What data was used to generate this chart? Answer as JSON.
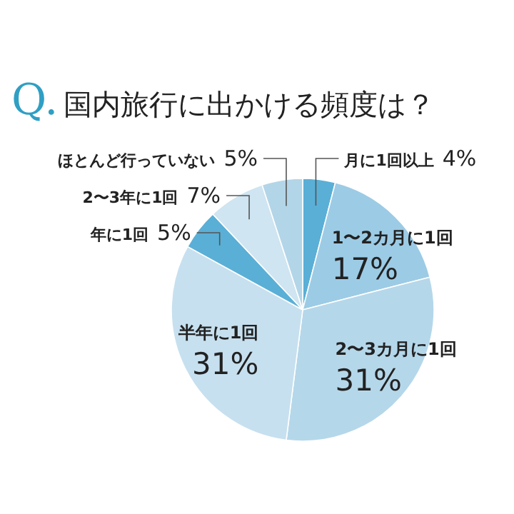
{
  "chart_data": {
    "type": "pie",
    "title": "Q.国内旅行に出かける頻度は？",
    "categories": [
      "月に1回以上",
      "1〜2カ月に1回",
      "2〜3カ月に1回",
      "半年に1回",
      "年に1回",
      "2〜3年に1回",
      "ほとんど行っていない"
    ],
    "values": [
      4,
      17,
      31,
      31,
      5,
      7,
      5
    ],
    "value_labels": [
      "4%",
      "17%",
      "31%",
      "31%",
      "5%",
      "7%",
      "5%"
    ],
    "colors": [
      "#5aafd6",
      "#9ccbe5",
      "#b5d7ea",
      "#c7e0ef",
      "#5aafd6",
      "#cfe5f1",
      "#b3d5e8"
    ],
    "legend": false
  }
}
